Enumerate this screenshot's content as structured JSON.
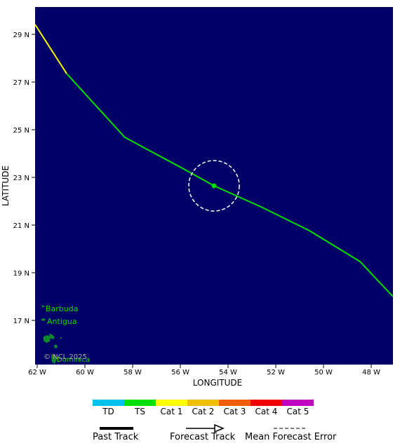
{
  "map": {
    "background_color": "#000066",
    "x_axis_label": "LONGITUDE",
    "y_axis_label": "LATITUDE",
    "lon_ticks": [
      "62 W",
      "60 W",
      "58 W",
      "56 W",
      "54 W",
      "52 W",
      "50 W",
      "48 W"
    ],
    "lat_ticks": [
      "29 N",
      "27 N",
      "25 N",
      "23 N",
      "21 N",
      "19 N",
      "17 N"
    ],
    "copyright": "© NCL 2025",
    "islands": [
      {
        "name": "Barbuda"
      },
      {
        "name": "Antigua"
      },
      {
        "name": "Dominica"
      }
    ],
    "land_color": "#0a8a2a",
    "island_label_color": "#00dd00"
  },
  "storm": {
    "track_colors": {
      "TS": "#00e000",
      "Cat 1": "#ffff00"
    },
    "current_position": {
      "lon": -54.6,
      "lat": 22.65
    },
    "forecast_error_radius_deg": 1.05
  },
  "legend": {
    "categories": [
      {
        "label": "TD",
        "color": "#00c0f0"
      },
      {
        "label": "TS",
        "color": "#00e000"
      },
      {
        "label": "Cat 1",
        "color": "#ffff00"
      },
      {
        "label": "Cat 2",
        "color": "#f0c000"
      },
      {
        "label": "Cat 3",
        "color": "#f06000"
      },
      {
        "label": "Cat 4",
        "color": "#f00000"
      },
      {
        "label": "Cat 5",
        "color": "#c000c0"
      }
    ],
    "past_track_label": "Past Track",
    "forecast_track_label": "Forecast Track",
    "error_label": "Mean Forecast Error"
  }
}
